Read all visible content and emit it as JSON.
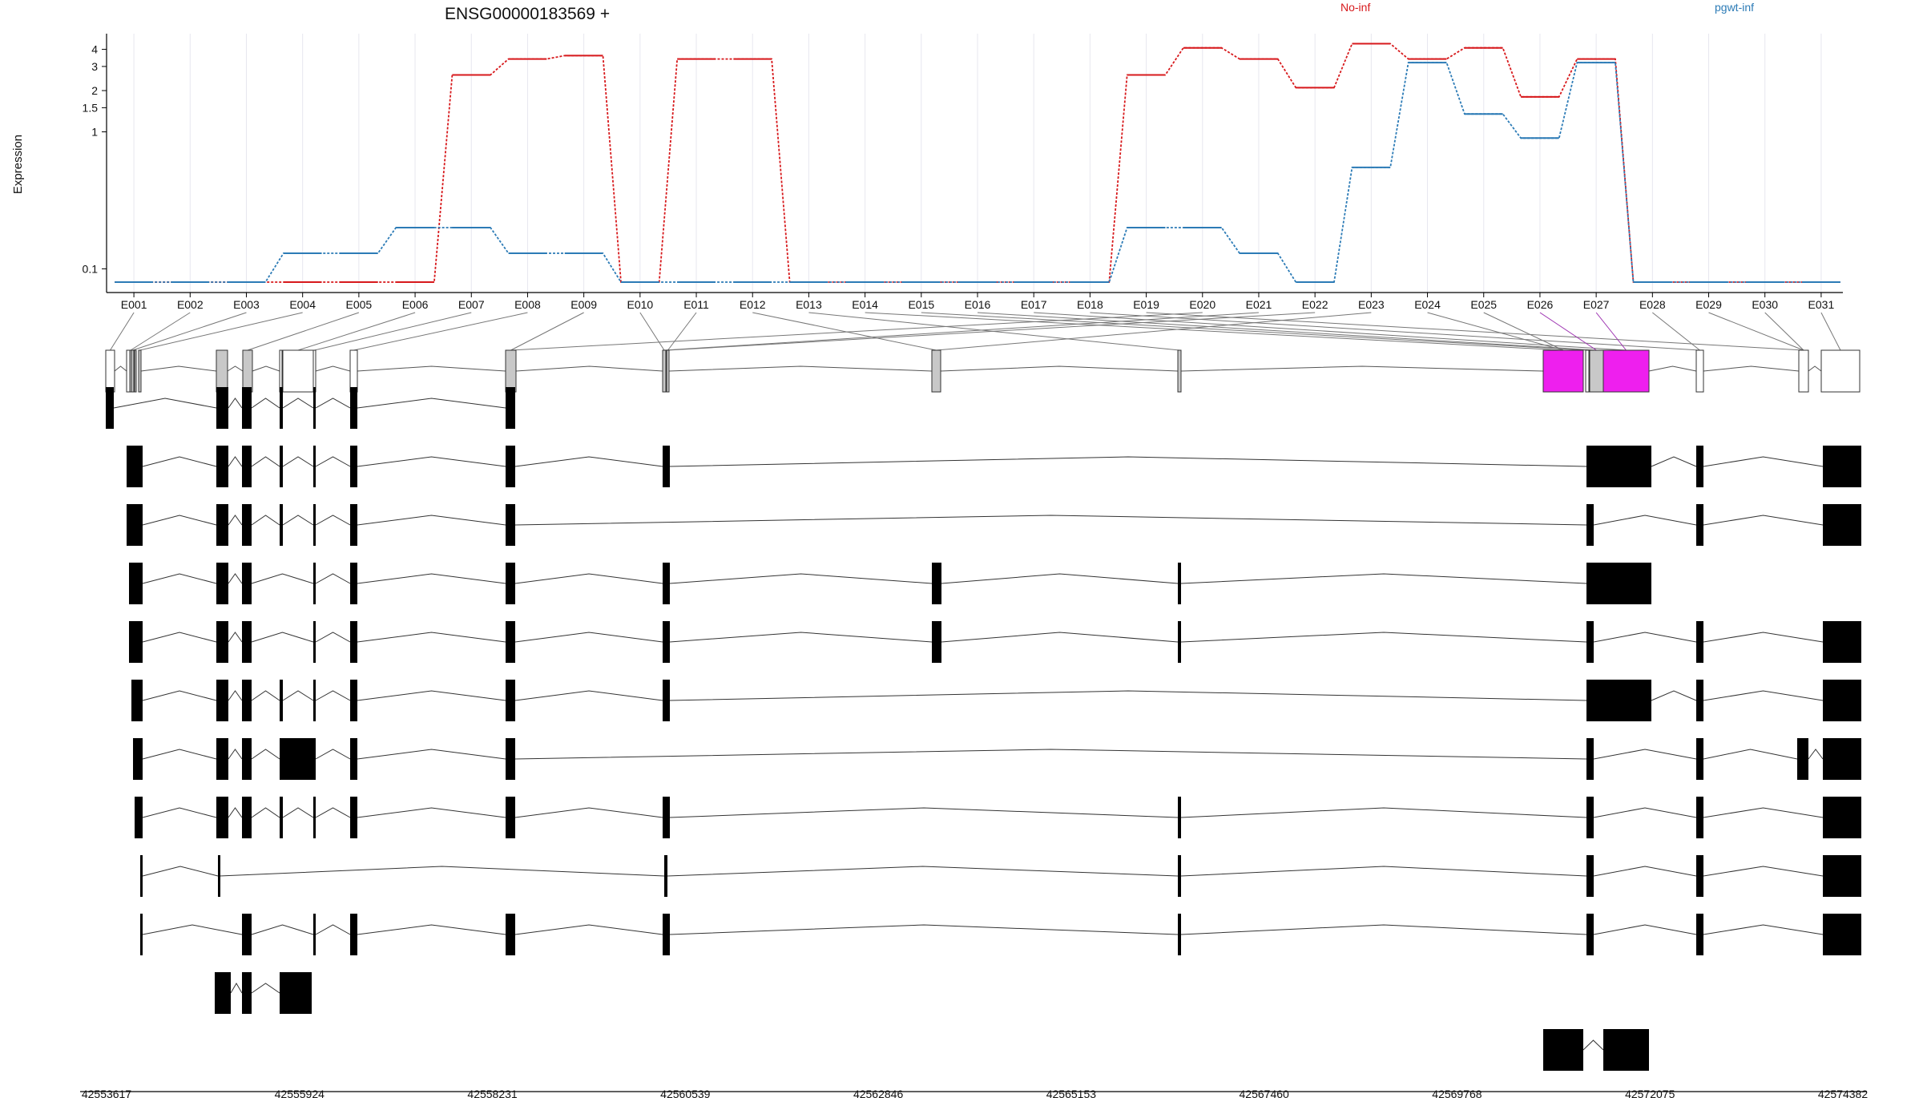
{
  "chart_data": {
    "type": "line",
    "title": "ENSG00000183569 +",
    "ylabel": "Expression",
    "y_scale": "log",
    "ylim": [
      0.08,
      5
    ],
    "y_ticks": [
      "0.1",
      "1",
      "1.5",
      "2",
      "3",
      "4"
    ],
    "grid": "vertical",
    "legend_position": "top",
    "exon_bins": [
      "E001",
      "E002",
      "E003",
      "E004",
      "E005",
      "E006",
      "E007",
      "E008",
      "E009",
      "E010",
      "E011",
      "E012",
      "E013",
      "E014",
      "E015",
      "E016",
      "E017",
      "E018",
      "E019",
      "E020",
      "E021",
      "E022",
      "E023",
      "E024",
      "E025",
      "E026",
      "E027",
      "E028",
      "E029",
      "E030",
      "E031"
    ],
    "series": [
      {
        "name": "No-inf",
        "color": "#d7191c",
        "values": [
          0.08,
          0.08,
          0.08,
          0.08,
          0.08,
          0.08,
          2.6,
          3.4,
          3.6,
          0.08,
          3.4,
          3.4,
          0.08,
          0.08,
          0.08,
          0.08,
          0.08,
          0.08,
          2.6,
          4.1,
          3.4,
          2.1,
          4.4,
          3.4,
          4.1,
          1.8,
          3.4,
          0.08,
          0.08,
          0.08,
          0.08
        ]
      },
      {
        "name": "pgwt-inf",
        "color": "#2c7bb6",
        "values": [
          0.08,
          0.08,
          0.08,
          0.13,
          0.13,
          0.2,
          0.2,
          0.13,
          0.13,
          0.08,
          0.08,
          0.08,
          0.08,
          0.08,
          0.08,
          0.08,
          0.08,
          0.08,
          0.2,
          0.2,
          0.13,
          0.08,
          0.55,
          3.2,
          1.35,
          0.9,
          3.2,
          0.08,
          0.08,
          0.08,
          0.08
        ]
      }
    ],
    "highlight_color": "#ee1fee",
    "highlighted_bins": [
      "E026",
      "E027"
    ],
    "x_axis_coordinates": [
      "42553617",
      "42555924",
      "42558231",
      "42560539",
      "42562846",
      "42565153",
      "42567460",
      "42569768",
      "42572075",
      "42574382"
    ]
  }
}
